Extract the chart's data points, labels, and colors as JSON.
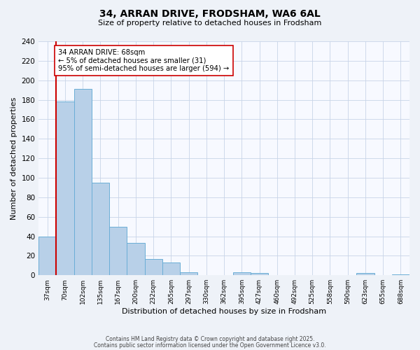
{
  "title_line1": "34, ARRAN DRIVE, FRODSHAM, WA6 6AL",
  "title_line2": "Size of property relative to detached houses in Frodsham",
  "xlabel": "Distribution of detached houses by size in Frodsham",
  "ylabel": "Number of detached properties",
  "bar_labels": [
    "37sqm",
    "70sqm",
    "102sqm",
    "135sqm",
    "167sqm",
    "200sqm",
    "232sqm",
    "265sqm",
    "297sqm",
    "330sqm",
    "362sqm",
    "395sqm",
    "427sqm",
    "460sqm",
    "492sqm",
    "525sqm",
    "558sqm",
    "590sqm",
    "623sqm",
    "655sqm",
    "688sqm"
  ],
  "bar_heights": [
    40,
    178,
    191,
    95,
    50,
    33,
    17,
    13,
    3,
    0,
    0,
    3,
    2,
    0,
    0,
    0,
    0,
    0,
    2,
    0,
    1
  ],
  "bar_color": "#b8d0e8",
  "bar_edgecolor": "#6baed6",
  "vline_color": "#cc0000",
  "annotation_title": "34 ARRAN DRIVE: 68sqm",
  "annotation_line1": "← 5% of detached houses are smaller (31)",
  "annotation_line2": "95% of semi-detached houses are larger (594) →",
  "annotation_box_edgecolor": "#cc0000",
  "annotation_box_facecolor": "#ffffff",
  "ylim": [
    0,
    240
  ],
  "yticks": [
    0,
    20,
    40,
    60,
    80,
    100,
    120,
    140,
    160,
    180,
    200,
    220,
    240
  ],
  "footer_line1": "Contains HM Land Registry data © Crown copyright and database right 2025.",
  "footer_line2": "Contains public sector information licensed under the Open Government Licence v3.0.",
  "background_color": "#eef2f8",
  "plot_background_color": "#f7f9ff"
}
